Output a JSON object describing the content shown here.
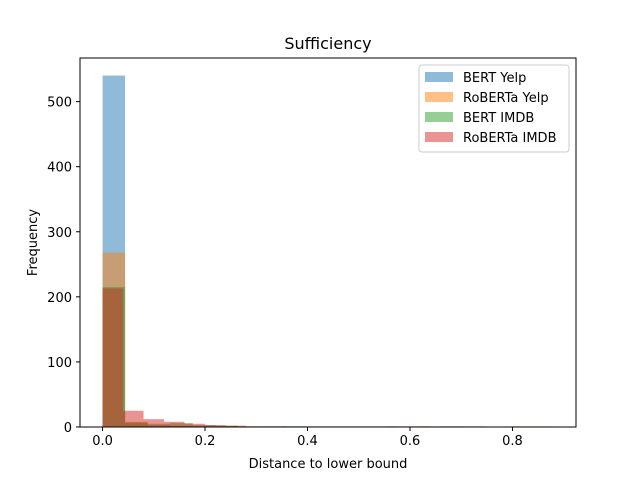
{
  "chart_data": {
    "type": "histogram",
    "title": "Sufficiency",
    "xlabel": "Distance to lower bound",
    "ylabel": "Frequency",
    "xlim": [
      -0.044,
      0.924
    ],
    "ylim": [
      0,
      567
    ],
    "xticks": [
      0.0,
      0.2,
      0.4,
      0.6,
      0.8
    ],
    "xtick_labels": [
      "0.0",
      "0.2",
      "0.4",
      "0.6",
      "0.8"
    ],
    "yticks": [
      0,
      100,
      200,
      300,
      400,
      500
    ],
    "ytick_labels": [
      "0",
      "100",
      "200",
      "300",
      "400",
      "500"
    ],
    "legend_position": "top-right",
    "grid": false,
    "series": [
      {
        "name": "BERT Yelp",
        "color": "#1f77b4",
        "bins": [
          [
            0.0,
            0.044,
            540
          ],
          [
            0.044,
            0.088,
            6
          ],
          [
            0.088,
            0.132,
            2
          ],
          [
            0.132,
            0.176,
            1
          ],
          [
            0.176,
            0.22,
            1
          ],
          [
            0.22,
            0.264,
            1
          ],
          [
            0.352,
            0.396,
            1
          ],
          [
            0.484,
            0.528,
            1
          ],
          [
            0.528,
            0.572,
            1
          ],
          [
            0.66,
            0.704,
            1
          ],
          [
            0.704,
            0.748,
            1
          ]
        ]
      },
      {
        "name": "RoBERTa Yelp",
        "color": "#ff7f0e",
        "bins": [
          [
            0.0,
            0.044,
            268
          ],
          [
            0.044,
            0.088,
            8
          ],
          [
            0.088,
            0.132,
            3
          ],
          [
            0.132,
            0.176,
            2
          ],
          [
            0.176,
            0.22,
            1
          ],
          [
            0.22,
            0.264,
            1
          ],
          [
            0.616,
            0.66,
            1
          ],
          [
            0.66,
            0.704,
            1
          ],
          [
            0.792,
            0.836,
            1
          ],
          [
            0.836,
            0.88,
            1
          ]
        ]
      },
      {
        "name": "BERT IMDB",
        "color": "#2ca02c",
        "bins": [
          [
            0.0,
            0.044,
            215
          ],
          [
            0.044,
            0.088,
            7
          ],
          [
            0.088,
            0.132,
            5
          ],
          [
            0.132,
            0.176,
            6
          ],
          [
            0.176,
            0.22,
            3
          ],
          [
            0.22,
            0.264,
            2
          ],
          [
            0.264,
            0.308,
            1
          ],
          [
            0.308,
            0.352,
            1
          ],
          [
            0.352,
            0.396,
            1
          ],
          [
            0.396,
            0.44,
            1
          ],
          [
            0.44,
            0.484,
            1
          ]
        ]
      },
      {
        "name": "RoBERTa IMDB",
        "color": "#d62728",
        "bins": [
          [
            0.0,
            0.04,
            213
          ],
          [
            0.04,
            0.08,
            25
          ],
          [
            0.08,
            0.12,
            12
          ],
          [
            0.12,
            0.16,
            8
          ],
          [
            0.16,
            0.2,
            5
          ],
          [
            0.2,
            0.24,
            3
          ],
          [
            0.24,
            0.28,
            2
          ],
          [
            0.28,
            0.32,
            1
          ],
          [
            0.32,
            0.36,
            1
          ],
          [
            0.56,
            0.6,
            1
          ],
          [
            0.6,
            0.64,
            1
          ]
        ]
      }
    ]
  }
}
